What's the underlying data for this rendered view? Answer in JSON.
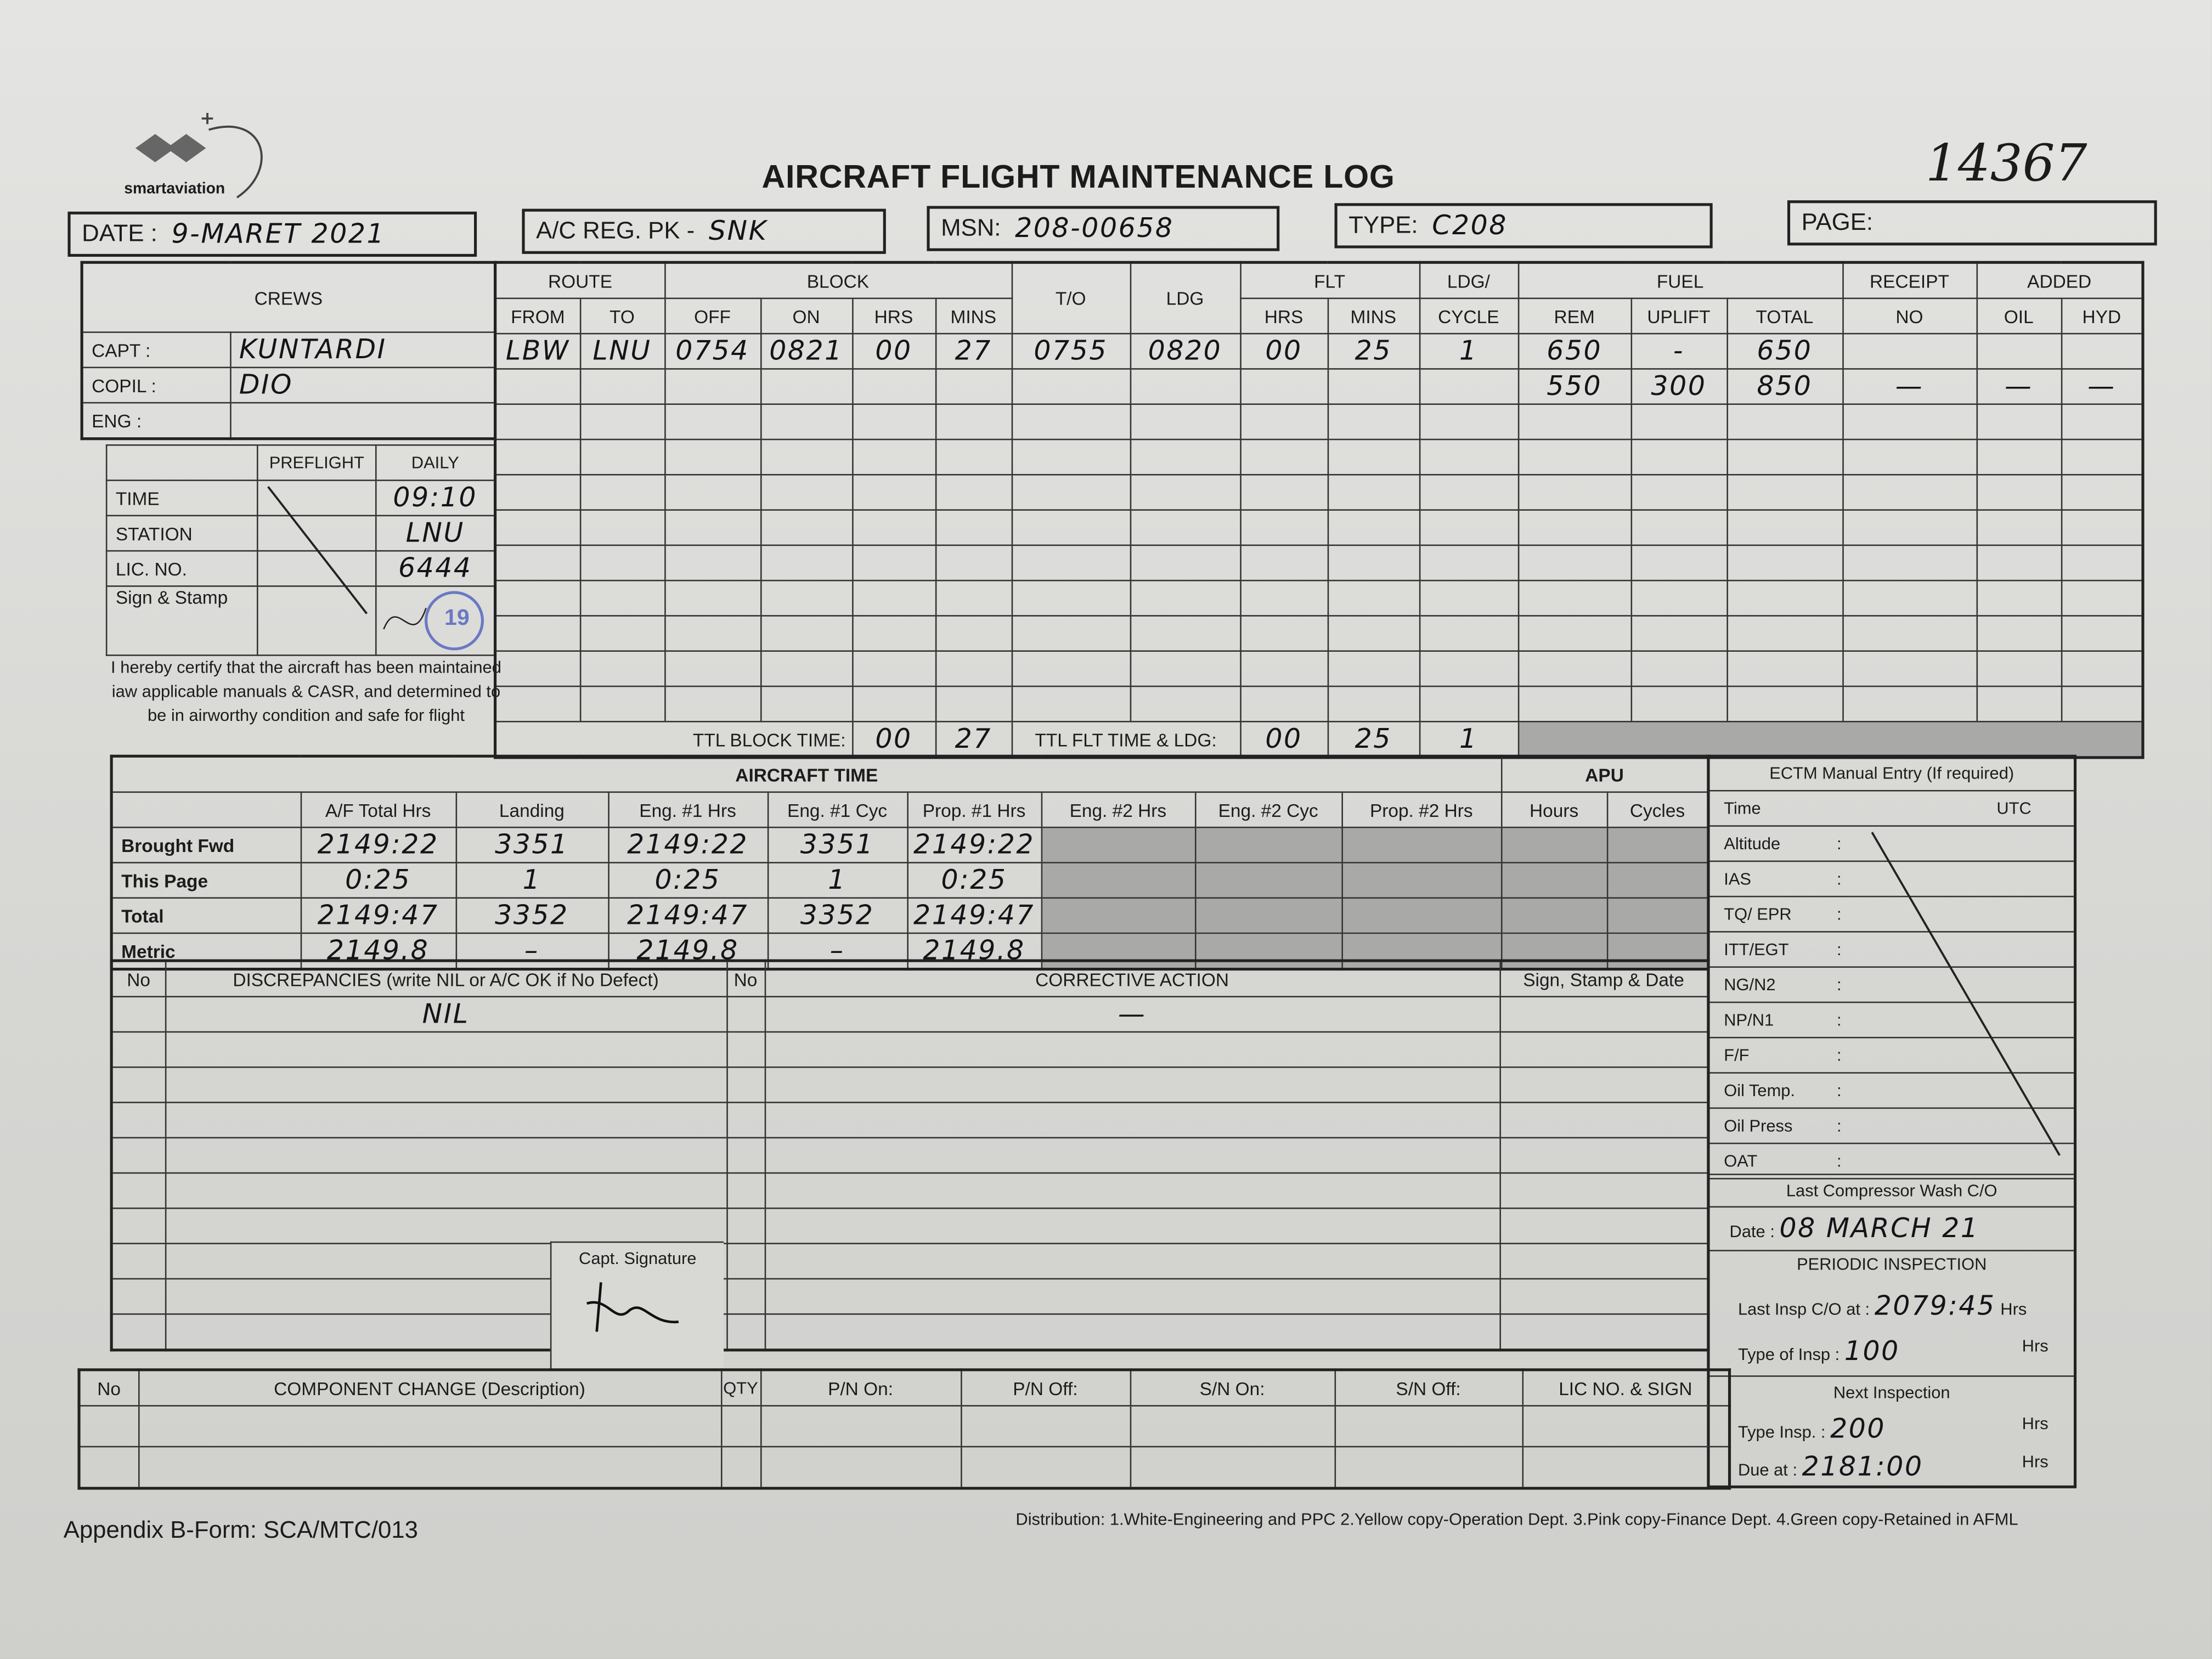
{
  "header": {
    "logo_text": "smartaviation",
    "title": "AIRCRAFT FLIGHT MAINTENANCE LOG",
    "serial": "14367",
    "date_label": "DATE :",
    "date": "9-MARET 2021",
    "reg_label": "A/C REG. PK -",
    "reg": "SNK",
    "msn_label": "MSN:",
    "msn": "208-00658",
    "type_label": "TYPE:",
    "type": "C208",
    "page_label": "PAGE:",
    "page": ""
  },
  "flight": {
    "h": {
      "crews": "CREWS",
      "route": "ROUTE",
      "from": "FROM",
      "to": "TO",
      "block": "BLOCK",
      "off": "OFF",
      "on": "ON",
      "hrs": "HRS",
      "mins": "MINS",
      "to_time": "T/O",
      "ldg": "LDG",
      "flt": "FLT",
      "flt_hrs": "HRS",
      "flt_mins": "MINS",
      "ldg_cycle_1": "LDG/",
      "ldg_cycle_2": "CYCLE",
      "fuel": "FUEL",
      "rem": "REM",
      "uplift": "UPLIFT",
      "total": "TOTAL",
      "receipt": "RECEIPT",
      "no": "NO",
      "added": "ADDED",
      "oil": "OIL",
      "hyd": "HYD"
    },
    "crew": {
      "capt_label": "CAPT :",
      "capt": "KUNTARDI",
      "copil_label": "COPIL :",
      "copil": "DIO",
      "eng_label": "ENG :",
      "eng": ""
    },
    "row1": {
      "from": "LBW",
      "to": "LNU",
      "off": "0754",
      "on": "0821",
      "hrs": "00",
      "mins": "27",
      "to_time": "0755",
      "ldg": "0820",
      "flt_hrs": "00",
      "flt_mins": "25",
      "cycle": "1",
      "rem": "650",
      "uplift": "-",
      "total": "650"
    },
    "row2": {
      "rem": "550",
      "uplift": "300",
      "total": "850",
      "receipt": "—",
      "oil": "—",
      "hyd": "—"
    },
    "ttl_block_label": "TTL BLOCK TIME:",
    "ttl_block_hrs": "00",
    "ttl_block_mins": "27",
    "ttl_flt_label": "TTL FLT TIME & LDG:",
    "ttl_flt_hrs": "00",
    "ttl_flt_mins": "25",
    "ttl_ldg": "1"
  },
  "check": {
    "preflight": "PREFLIGHT",
    "daily": "DAILY",
    "time_label": "TIME",
    "time": "09:10",
    "station_label": "STATION",
    "station": "LNU",
    "lic_label": "LIC. NO.",
    "lic": "6444",
    "sign_label": "Sign & Stamp",
    "stamp_text": "19",
    "certify": "I hereby certify that the aircraft has been maintained iaw applicable manuals & CASR, and determined to be in airworthy condition and safe for flight"
  },
  "aircraft_time": {
    "title": "AIRCRAFT TIME",
    "apu": "APU",
    "cols": [
      "A/F Total Hrs",
      "Landing",
      "Eng. #1 Hrs",
      "Eng. #1 Cyc",
      "Prop. #1 Hrs",
      "Eng. #2 Hrs",
      "Eng. #2 Cyc",
      "Prop. #2 Hrs",
      "Hours",
      "Cycles"
    ],
    "rows": [
      {
        "label": "Brought Fwd",
        "v": [
          "2149:22",
          "3351",
          "2149:22",
          "3351",
          "2149:22"
        ]
      },
      {
        "label": "This Page",
        "v": [
          "0:25",
          "1",
          "0:25",
          "1",
          "0:25"
        ]
      },
      {
        "label": "Total",
        "v": [
          "2149:47",
          "3352",
          "2149:47",
          "3352",
          "2149:47"
        ]
      },
      {
        "label": "Metric",
        "v": [
          "2149.8",
          "–",
          "2149.8",
          "–",
          "2149.8"
        ]
      }
    ]
  },
  "ectm": {
    "title": "ECTM Manual Entry (If required)",
    "time_label": "Time",
    "utc": "UTC",
    "items": [
      "Altitude",
      "IAS",
      "TQ/ EPR",
      "ITT/EGT",
      "NG/N2",
      "NP/N1",
      "F/F",
      "Oil Temp.",
      "Oil Press",
      "OAT"
    ],
    "wash_title": "Last Compressor Wash C/O",
    "wash_date_label": "Date",
    "wash_date": "08 MARCH 21",
    "periodic_title": "PERIODIC INSPECTION",
    "last_insp_label": "Last Insp C/O at",
    "last_insp": "2079:45",
    "hrs": "Hrs",
    "type_insp_label": "Type of Insp",
    "type_insp": "100",
    "next_title": "Next Inspection",
    "next_type_label": "Type Insp.",
    "next_type": "200",
    "due_label": "Due at",
    "due": "2181:00"
  },
  "discrepancy": {
    "no": "No",
    "title": "DISCREPANCIES (write NIL or A/C OK if No Defect)",
    "entry": "NIL",
    "corr_no": "No",
    "corrective": "CORRECTIVE ACTION",
    "corrective_entry": "—",
    "sign": "Sign, Stamp & Date",
    "capt_signature": "Capt. Signature"
  },
  "component": {
    "no": "No",
    "desc": "COMPONENT CHANGE (Description)",
    "qty": "QTY",
    "pn_on": "P/N On:",
    "pn_off": "P/N Off:",
    "sn_on": "S/N On:",
    "sn_off": "S/N Off:",
    "lic": "LIC NO. & SIGN"
  },
  "footer": {
    "form": "Appendix B-Form: SCA/MTC/013",
    "distribution": "Distribution: 1.White-Engineering and PPC  2.Yellow copy-Operation Dept.  3.Pink copy-Finance Dept.  4.Green copy-Retained in AFML"
  }
}
